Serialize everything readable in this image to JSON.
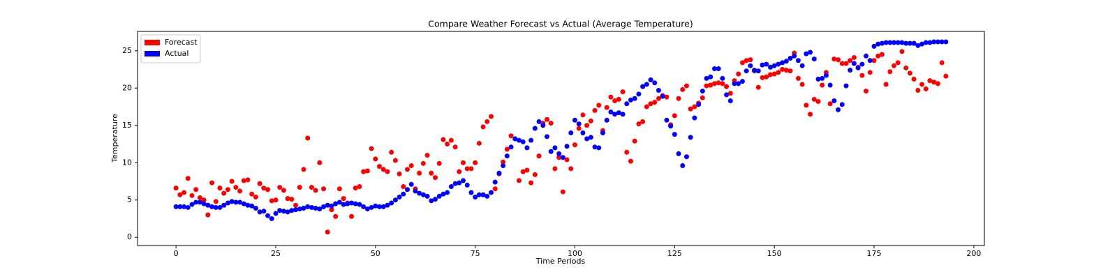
{
  "chart_data": {
    "type": "scatter",
    "title": "Compare Weather Forecast vs Actual (Average Temperature)",
    "x_label": "Time Periods",
    "y_label": "Temperature",
    "x": [
      0,
      1,
      2,
      3,
      4,
      5,
      6,
      7,
      8,
      9,
      10,
      11,
      12,
      13,
      14,
      15,
      16,
      17,
      18,
      19,
      20,
      21,
      22,
      23,
      24,
      25,
      26,
      27,
      28,
      29,
      30,
      31,
      32,
      33,
      34,
      35,
      36,
      37,
      38,
      39,
      40,
      41,
      42,
      43,
      44,
      45,
      46,
      47,
      48,
      49,
      50,
      51,
      52,
      53,
      54,
      55,
      56,
      57,
      58,
      59,
      60,
      61,
      62,
      63,
      64,
      65,
      66,
      67,
      68,
      69,
      70,
      71,
      72,
      73,
      74,
      75,
      76,
      77,
      78,
      79,
      80,
      81,
      82,
      83,
      84,
      85,
      86,
      87,
      88,
      89,
      90,
      91,
      92,
      93,
      94,
      95,
      96,
      97,
      98,
      99,
      100,
      101,
      102,
      103,
      104,
      105,
      106,
      107,
      108,
      109,
      110,
      111,
      112,
      113,
      114,
      115,
      116,
      117,
      118,
      119,
      120,
      121,
      122,
      123,
      124,
      125,
      126,
      127,
      128,
      129,
      130,
      131,
      132,
      133,
      134,
      135,
      136,
      137,
      138,
      139,
      140,
      141,
      142,
      143,
      144,
      145,
      146,
      147,
      148,
      149,
      150,
      151,
      152,
      153,
      154,
      155,
      156,
      157,
      158,
      159,
      160,
      161,
      162,
      163,
      164,
      165,
      166,
      167,
      168,
      169,
      170,
      171,
      172,
      173,
      174,
      175,
      176,
      177,
      178,
      179,
      180,
      181,
      182,
      183,
      184,
      185,
      186,
      187,
      188,
      189,
      190,
      191,
      192,
      193
    ],
    "series": [
      {
        "name": "Forecast",
        "color": "#ff0000",
        "values": [
          6.6,
          5.7,
          6.0,
          7.9,
          5.6,
          6.4,
          5.3,
          5.0,
          3.0,
          7.3,
          4.8,
          6.6,
          5.9,
          6.4,
          7.5,
          6.7,
          6.2,
          7.6,
          7.7,
          5.8,
          5.4,
          7.2,
          6.6,
          6.4,
          4.9,
          5.0,
          6.7,
          6.3,
          5.2,
          5.1,
          4.3,
          6.7,
          9.1,
          13.3,
          6.7,
          6.3,
          10.0,
          6.5,
          0.7,
          3.7,
          2.8,
          6.5,
          5.2,
          4.6,
          2.8,
          6.6,
          6.8,
          8.8,
          8.9,
          11.9,
          10.5,
          9.5,
          9.1,
          8.8,
          11.4,
          10.3,
          8.5,
          6.8,
          9.1,
          9.6,
          6.5,
          8.6,
          9.9,
          11.0,
          8.6,
          8.0,
          9.9,
          13.1,
          12.5,
          13.0,
          12.1,
          8.8,
          10.0,
          9.2,
          9.2,
          10.0,
          12.6,
          14.8,
          15.5,
          16.2,
          6.5,
          8.5,
          10.1,
          11.8,
          13.6,
          13.2,
          7.6,
          8.8,
          9.0,
          7.3,
          8.4,
          10.9,
          15.3,
          15.8,
          15.3,
          9.2,
          10.7,
          6.1,
          10.4,
          9.2,
          12.4,
          14.6,
          16.4,
          15.0,
          15.6,
          17.0,
          17.7,
          14.3,
          17.4,
          18.8,
          18.3,
          18.5,
          19.5,
          11.4,
          10.2,
          12.9,
          15.2,
          15.5,
          17.5,
          17.9,
          18.1,
          18.6,
          19.0,
          18.8,
          15.1,
          16.3,
          18.6,
          19.8,
          20.3,
          17.2,
          17.5,
          18.0,
          18.7,
          20.3,
          20.4,
          20.6,
          20.7,
          20.6,
          20.2,
          19.3,
          21.0,
          21.9,
          23.4,
          23.7,
          23.8,
          22.3,
          20.1,
          21.4,
          21.5,
          21.8,
          21.9,
          22.1,
          22.5,
          22.4,
          22.3,
          24.7,
          21.3,
          20.5,
          17.7,
          16.5,
          18.5,
          18.2,
          20.4,
          22.1,
          17.9,
          23.9,
          23.8,
          23.3,
          23.3,
          23.7,
          24.1,
          22.8,
          21.7,
          19.6,
          22.1,
          23.7,
          24.3,
          24.5,
          20.5,
          22.2,
          23.0,
          23.4,
          24.9,
          22.7,
          22.0,
          21.2,
          19.7,
          20.5,
          19.9,
          21.0,
          20.8,
          20.6,
          23.4,
          21.6
        ]
      },
      {
        "name": "Actual",
        "color": "#0000ff",
        "values": [
          4.1,
          4.1,
          4.1,
          4.0,
          4.4,
          4.7,
          4.7,
          4.5,
          4.3,
          4.1,
          4.0,
          4.0,
          4.3,
          4.6,
          4.8,
          4.7,
          4.7,
          4.5,
          4.3,
          4.2,
          3.9,
          3.4,
          3.5,
          2.9,
          2.5,
          3.2,
          3.6,
          3.5,
          3.4,
          3.6,
          3.7,
          3.8,
          3.9,
          4.1,
          4.0,
          3.9,
          3.8,
          4.1,
          4.3,
          4.2,
          4.5,
          4.7,
          4.4,
          4.5,
          4.6,
          4.5,
          4.4,
          4.1,
          3.8,
          4.0,
          4.2,
          4.1,
          4.1,
          4.3,
          4.6,
          5.0,
          5.4,
          5.8,
          6.4,
          7.1,
          6.2,
          5.9,
          5.7,
          5.5,
          4.9,
          5.1,
          5.5,
          5.8,
          6.0,
          6.8,
          7.2,
          7.3,
          7.6,
          7.0,
          6.0,
          5.4,
          5.7,
          5.7,
          5.5,
          6.0,
          7.4,
          8.6,
          9.6,
          10.9,
          12.1,
          13.2,
          13.0,
          12.8,
          12.0,
          13.0,
          14.6,
          15.5,
          15.0,
          13.5,
          11.5,
          12.0,
          11.2,
          10.7,
          12.2,
          14.0,
          15.7,
          15.2,
          14.0,
          13.2,
          13.4,
          12.1,
          12.0,
          14.0,
          15.7,
          16.8,
          16.5,
          16.7,
          16.5,
          17.9,
          18.4,
          18.6,
          19.2,
          20.2,
          20.5,
          21.1,
          20.7,
          19.7,
          18.9,
          15.7,
          14.9,
          13.8,
          11.2,
          9.6,
          10.8,
          13.4,
          16.0,
          17.8,
          19.6,
          21.3,
          21.5,
          22.6,
          22.6,
          21.3,
          19.1,
          18.3,
          20.6,
          20.6,
          20.9,
          22.3,
          23.0,
          22.4,
          22.3,
          23.1,
          23.2,
          22.8,
          23.0,
          23.2,
          23.4,
          23.6,
          24.0,
          24.3,
          23.7,
          23.0,
          24.6,
          24.8,
          23.9,
          21.2,
          21.3,
          21.7,
          20.4,
          18.3,
          17.1,
          17.8,
          20.3,
          22.4,
          23.3,
          22.7,
          23.2,
          24.3,
          23.7,
          25.6,
          25.9,
          26.0,
          26.1,
          26.1,
          26.1,
          26.1,
          26.1,
          26.0,
          26.0,
          26.0,
          25.7,
          25.9,
          26.1,
          26.1,
          26.2,
          26.2,
          26.2,
          26.2
        ]
      }
    ],
    "xlim": [
      -9.65,
      202.65
    ],
    "ylim": [
      -1.1,
      27.6
    ],
    "xticks": [
      0,
      25,
      50,
      75,
      100,
      125,
      150,
      175,
      200
    ],
    "yticks": [
      0,
      5,
      10,
      15,
      20,
      25
    ],
    "grid": false,
    "legend": "upper-left"
  }
}
